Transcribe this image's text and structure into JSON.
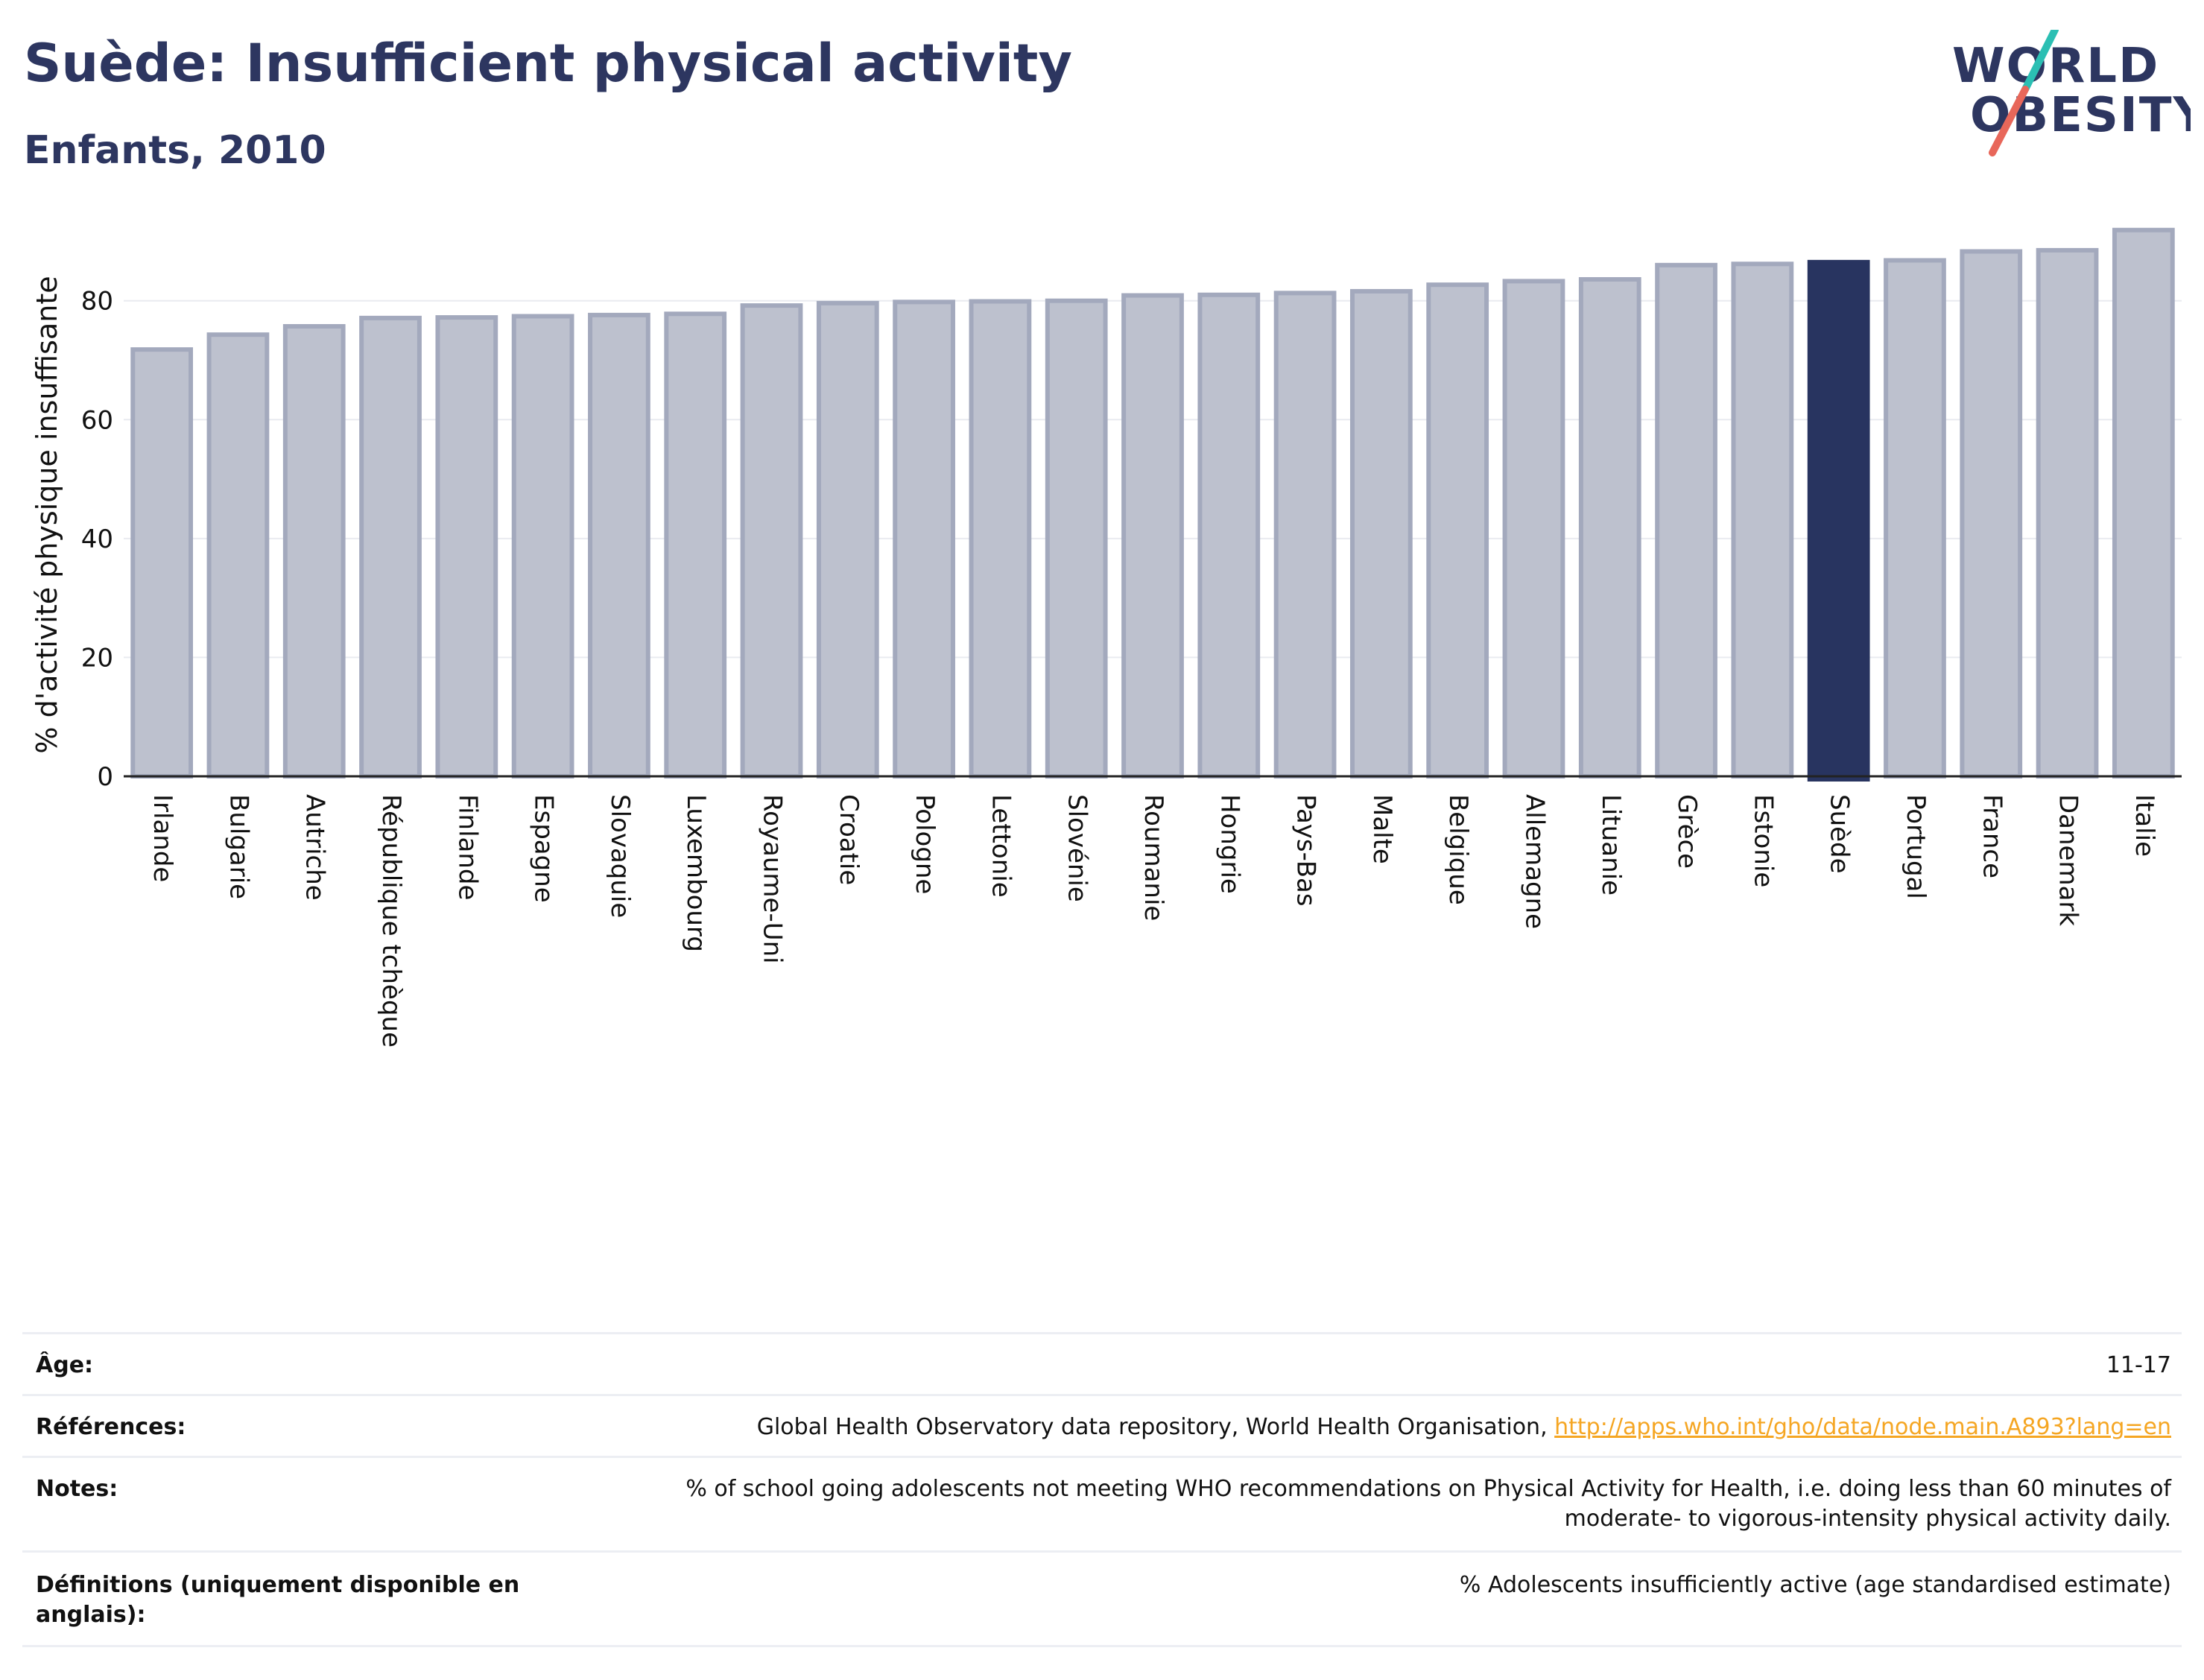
{
  "header": {
    "title": "Suède: Insufficient physical activity",
    "subtitle": "Enfants, 2010"
  },
  "logo": {
    "line1": "WORLD",
    "line2": "OBESITY"
  },
  "colors": {
    "navy": "#283460",
    "bar_fill": "#bdc1ce",
    "bar_stroke": "#a3a9bd",
    "highlight": "#283460",
    "logo_slash_top": "#2bbfb3",
    "logo_slash_bottom": "#e8675a",
    "link": "#f5a623"
  },
  "chart_data": {
    "type": "bar",
    "ylabel": "% d'activité physique insuffisante",
    "xlabel": "",
    "ylim": [
      0,
      93
    ],
    "yticks": [
      0,
      20,
      40,
      60,
      80
    ],
    "grid": true,
    "highlight": "Suède",
    "categories": [
      "Irlande",
      "Bulgarie",
      "Autriche",
      "République tchèque",
      "Finlande",
      "Espagne",
      "Slovaquie",
      "Luxembourg",
      "Royaume-Uni",
      "Croatie",
      "Pologne",
      "Lettonie",
      "Slovénie",
      "Roumanie",
      "Hongrie",
      "Pays-Bas",
      "Malte",
      "Belgique",
      "Allemagne",
      "Lituanie",
      "Grèce",
      "Estonie",
      "Suède",
      "Portugal",
      "France",
      "Danemark",
      "Italie"
    ],
    "values": [
      71.8,
      74.3,
      75.7,
      77.1,
      77.2,
      77.4,
      77.6,
      77.8,
      79.2,
      79.6,
      79.8,
      79.9,
      80.0,
      80.9,
      81.0,
      81.3,
      81.6,
      82.7,
      83.3,
      83.6,
      86.0,
      86.2,
      86.5,
      86.8,
      88.3,
      88.5,
      91.9
    ]
  },
  "info": {
    "age_label": "Âge:",
    "age_value": "11-17",
    "refs_label": "Références:",
    "refs_text": "Global Health Observatory data repository, World Health Organisation, ",
    "refs_link": "http://apps.who.int/gho/data/node.main.A893?lang=en",
    "notes_label": "Notes:",
    "notes_value": "% of school going adolescents not meeting WHO recommendations on Physical Activity for Health, i.e. doing less than 60 minutes of moderate- to vigorous-intensity physical activity daily.",
    "defs_label": "Définitions (uniquement disponible en anglais):",
    "defs_value": "% Adolescents insufficiently active (age standardised estimate)"
  }
}
